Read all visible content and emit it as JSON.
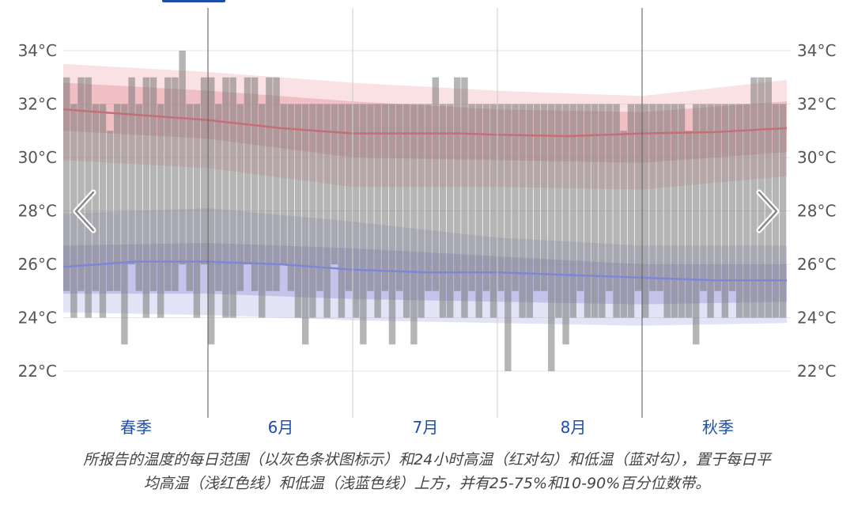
{
  "chart_data": {
    "type": "area",
    "title": "",
    "xlabel": "",
    "ylabel": "",
    "ylim": [
      20.5,
      35.5
    ],
    "y_ticks": [
      "34°C",
      "32°C",
      "30°C",
      "28°C",
      "26°C",
      "24°C",
      "22°C"
    ],
    "y_tick_values": [
      34,
      32,
      30,
      28,
      26,
      24,
      22
    ],
    "grid": true,
    "x_range_days": [
      0,
      100
    ],
    "month_labels": [
      {
        "label": "春季",
        "day": 5
      },
      {
        "label": "6月",
        "day": 15
      },
      {
        "label": "7月",
        "day": 25.5
      },
      {
        "label": "8月",
        "day": 35.7
      },
      {
        "label": "秋季",
        "day": 46
      }
    ],
    "x_categories": [
      "春季",
      "6月",
      "7月",
      "8月",
      "秋季"
    ],
    "average_high": {
      "x": [
        0,
        10,
        20,
        30,
        40,
        50,
        55,
        60,
        70,
        80,
        90,
        100
      ],
      "y": [
        31.8,
        31.6,
        31.4,
        31.1,
        30.9,
        30.9,
        30.9,
        30.85,
        30.8,
        30.9,
        30.95,
        31.1
      ]
    },
    "average_low": {
      "x": [
        0,
        10,
        20,
        30,
        40,
        50,
        60,
        70,
        80,
        90,
        100
      ],
      "y": [
        25.9,
        26.1,
        26.1,
        26.0,
        25.8,
        25.7,
        25.7,
        25.6,
        25.5,
        25.4,
        25.4
      ]
    },
    "high_band_10_90": {
      "x": [
        0,
        20,
        40,
        60,
        80,
        100
      ],
      "low": [
        29.9,
        29.6,
        28.9,
        28.9,
        28.8,
        29.3
      ],
      "high": [
        33.5,
        33.2,
        32.8,
        32.5,
        32.3,
        32.9
      ]
    },
    "high_band_25_75": {
      "x": [
        0,
        20,
        40,
        60,
        80,
        100
      ],
      "low": [
        31.0,
        30.7,
        30.0,
        29.9,
        29.8,
        30.2
      ],
      "high": [
        32.8,
        32.5,
        32.1,
        31.8,
        31.7,
        32.1
      ]
    },
    "low_band_10_90": {
      "x": [
        0,
        20,
        40,
        60,
        80,
        100
      ],
      "low": [
        24.2,
        24.1,
        23.9,
        23.8,
        23.7,
        23.8
      ],
      "high": [
        27.9,
        28.1,
        27.6,
        27.0,
        26.7,
        26.7
      ]
    },
    "low_band_25_75": {
      "x": [
        0,
        20,
        40,
        60,
        80,
        100
      ],
      "low": [
        24.9,
        24.9,
        24.7,
        24.6,
        24.5,
        24.6
      ],
      "high": [
        26.7,
        26.8,
        26.6,
        26.3,
        26.0,
        26.0
      ]
    },
    "daily_range_bars": {
      "description": "所报告的温度的每日范围",
      "low": [
        25,
        24,
        25,
        24,
        25,
        24,
        25,
        25,
        23,
        26,
        25,
        24,
        25,
        24,
        25,
        25,
        26,
        25,
        24,
        26,
        23,
        25,
        24,
        24,
        25,
        26,
        25,
        24,
        25,
        25,
        26,
        25,
        24,
        23,
        24,
        25,
        24,
        26,
        24,
        25,
        24,
        23,
        25,
        24,
        25,
        23,
        25,
        24,
        23,
        24,
        25,
        25,
        24,
        24,
        25,
        24,
        25,
        24,
        25,
        24,
        25,
        22,
        25,
        24,
        24,
        25,
        25,
        22,
        24,
        23,
        24,
        25,
        24,
        24,
        24,
        25,
        24,
        24,
        24,
        25,
        24,
        25,
        25,
        24,
        24,
        24,
        24,
        23,
        25,
        24,
        25,
        24,
        25,
        24,
        24,
        24,
        24,
        24,
        24,
        24
      ],
      "high": [
        33,
        32,
        33,
        33,
        32,
        32,
        31,
        32,
        32,
        33,
        32,
        33,
        33,
        32,
        33,
        33,
        34,
        32,
        32,
        33,
        33,
        32,
        33,
        33,
        32,
        33,
        33,
        32,
        33,
        33,
        32,
        32,
        32,
        32,
        32,
        32,
        32,
        32,
        32,
        32,
        32,
        32,
        32,
        32,
        32,
        32,
        32,
        32,
        32,
        32,
        32,
        33,
        32,
        32,
        33,
        33,
        32,
        32,
        32,
        32,
        32,
        32,
        32,
        32,
        32,
        32,
        32,
        32,
        32,
        32,
        32,
        32,
        32,
        32,
        32,
        32,
        32,
        31,
        32,
        32,
        32,
        32,
        32,
        32,
        32,
        32,
        31,
        32,
        32,
        32,
        32,
        32,
        32,
        32,
        32,
        33,
        33,
        33,
        32,
        32
      ]
    }
  },
  "nav": {
    "prev_label": "‹",
    "next_label": "›"
  },
  "caption": {
    "line1": "所报告的温度的每日范围（以灰色条状图标示）和24小时高温（红对勾）和低温（蓝对勾），置于每日平",
    "line2": "均高温（浅红色线）和低温（浅蓝色线）上方，并有25-75%和10-90%百分位数带。"
  }
}
